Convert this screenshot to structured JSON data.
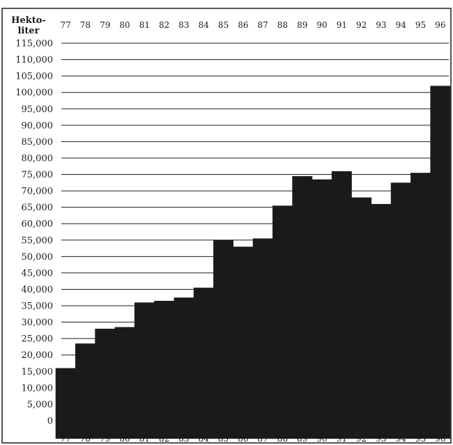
{
  "chart_data": {
    "type": "bar",
    "y_unit_label_lines": [
      "Hekto-",
      "liter"
    ],
    "categories": [
      "77",
      "78",
      "79",
      "80",
      "81",
      "82",
      "83",
      "84",
      "85",
      "86",
      "87",
      "88",
      "89",
      "90",
      "91",
      "92",
      "93",
      "94",
      "95",
      "96"
    ],
    "values": [
      16000,
      23500,
      28000,
      28500,
      36000,
      36500,
      37500,
      40500,
      55000,
      53000,
      55500,
      65500,
      74500,
      73500,
      76000,
      68000,
      66000,
      72500,
      75500,
      102000
    ],
    "y_ticks": [
      0,
      5000,
      10000,
      15000,
      20000,
      25000,
      30000,
      35000,
      40000,
      45000,
      50000,
      55000,
      60000,
      65000,
      70000,
      75000,
      80000,
      85000,
      90000,
      95000,
      100000,
      105000,
      110000,
      115000
    ],
    "y_tick_labels": [
      "0",
      "5,000",
      "10,000",
      "15,000",
      "20,000",
      "25,000",
      "30,000",
      "35,000",
      "40,000",
      "45,000",
      "50,000",
      "55,000",
      "60,000",
      "65,000",
      "70,000",
      "75,000",
      "80,000",
      "85,000",
      "90,000",
      "95,000",
      "100,000",
      "105,000",
      "110,000",
      "115,000"
    ],
    "ylim": [
      0,
      115000
    ],
    "x_labels_top": true,
    "x_labels_bottom": true,
    "grid": true,
    "colors": {
      "bar": "#1a1a1a",
      "grid": "#1a1a1a",
      "text": "#1a1a1a",
      "background": "#ffffff"
    }
  }
}
